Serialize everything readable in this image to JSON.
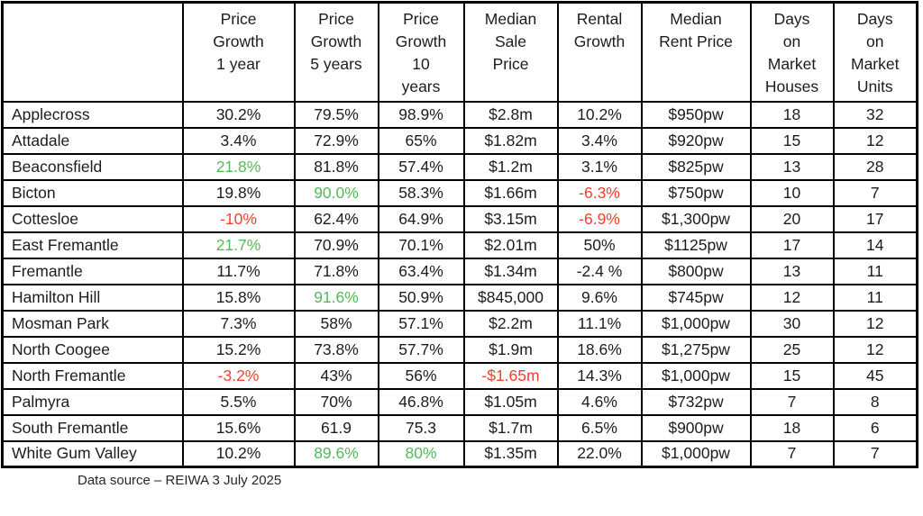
{
  "colors": {
    "text": "#1c1c1c",
    "positive": "#53b959",
    "negative": "#f4402d",
    "border": "#000000",
    "page_bg": "#ffffff"
  },
  "footer": {
    "source_note": "Data source – REIWA 3 July 2025"
  },
  "chart_data": {
    "type": "table",
    "title": "",
    "legend": "cell text colored green = highlighted positive growth, red = negative value",
    "columns": [
      {
        "label": "",
        "display": ""
      },
      {
        "label": "Price Growth 1 year",
        "display": "Price\nGrowth\n1 year"
      },
      {
        "label": "Price Growth 5 years",
        "display": "Price\nGrowth\n5 years"
      },
      {
        "label": "Price Growth 10 years",
        "display": "Price\nGrowth\n10\nyears"
      },
      {
        "label": "Median Sale Price",
        "display": "Median\nSale\nPrice"
      },
      {
        "label": "Rental Growth",
        "display": "Rental\nGrowth"
      },
      {
        "label": "Median Rent Price",
        "display": "Median\nRent Price"
      },
      {
        "label": "Days on Market Houses",
        "display": "Days\non\nMarket\nHouses"
      },
      {
        "label": "Days on Market Units",
        "display": "Days\non\nMarket\nUnits"
      }
    ],
    "rows": [
      {
        "suburb": "Applecross",
        "cells": [
          {
            "text": "30.2%",
            "color": null
          },
          {
            "text": "79.5%",
            "color": null
          },
          {
            "text": "98.9%",
            "color": null
          },
          {
            "text": "$2.8m",
            "color": null
          },
          {
            "text": "10.2%",
            "color": null
          },
          {
            "text": "$950pw",
            "color": null
          },
          {
            "text": "18",
            "color": null
          },
          {
            "text": "32",
            "color": null
          }
        ]
      },
      {
        "suburb": "Attadale",
        "cells": [
          {
            "text": "3.4%",
            "color": null
          },
          {
            "text": "72.9%",
            "color": null
          },
          {
            "text": "65%",
            "color": null
          },
          {
            "text": "$1.82m",
            "color": null
          },
          {
            "text": "3.4%",
            "color": null
          },
          {
            "text": "$920pw",
            "color": null
          },
          {
            "text": "15",
            "color": null
          },
          {
            "text": "12",
            "color": null
          }
        ]
      },
      {
        "suburb": "Beaconsfield",
        "cells": [
          {
            "text": "21.8%",
            "color": "green"
          },
          {
            "text": "81.8%",
            "color": null
          },
          {
            "text": "57.4%",
            "color": null
          },
          {
            "text": "$1.2m",
            "color": null
          },
          {
            "text": "3.1%",
            "color": null
          },
          {
            "text": "$825pw",
            "color": null
          },
          {
            "text": "13",
            "color": null
          },
          {
            "text": "28",
            "color": null
          }
        ]
      },
      {
        "suburb": "Bicton",
        "cells": [
          {
            "text": "19.8%",
            "color": null
          },
          {
            "text": "90.0%",
            "color": "green"
          },
          {
            "text": "58.3%",
            "color": null
          },
          {
            "text": "$1.66m",
            "color": null
          },
          {
            "text": "-6.3%",
            "color": "red"
          },
          {
            "text": "$750pw",
            "color": null
          },
          {
            "text": "10",
            "color": null
          },
          {
            "text": "7",
            "color": null
          }
        ]
      },
      {
        "suburb": "Cottesloe",
        "cells": [
          {
            "text": "-10%",
            "color": "red"
          },
          {
            "text": "62.4%",
            "color": null
          },
          {
            "text": "64.9%",
            "color": null
          },
          {
            "text": "$3.15m",
            "color": null
          },
          {
            "text": "-6.9%",
            "color": "red"
          },
          {
            "text": "$1,300pw",
            "color": null
          },
          {
            "text": "20",
            "color": null
          },
          {
            "text": "17",
            "color": null
          }
        ]
      },
      {
        "suburb": "East Fremantle",
        "cells": [
          {
            "text": "21.7%",
            "color": "green"
          },
          {
            "text": "70.9%",
            "color": null
          },
          {
            "text": "70.1%",
            "color": null
          },
          {
            "text": "$2.01m",
            "color": null
          },
          {
            "text": "50%",
            "color": null
          },
          {
            "text": "$1125pw",
            "color": null
          },
          {
            "text": "17",
            "color": null
          },
          {
            "text": "14",
            "color": null
          }
        ]
      },
      {
        "suburb": "Fremantle",
        "cells": [
          {
            "text": "11.7%",
            "color": null
          },
          {
            "text": "71.8%",
            "color": null
          },
          {
            "text": "63.4%",
            "color": null
          },
          {
            "text": "$1.34m",
            "color": null
          },
          {
            "text": "-2.4 %",
            "color": null
          },
          {
            "text": "$800pw",
            "color": null
          },
          {
            "text": "13",
            "color": null
          },
          {
            "text": "11",
            "color": null
          }
        ]
      },
      {
        "suburb": "Hamilton Hill",
        "cells": [
          {
            "text": "15.8%",
            "color": null
          },
          {
            "text": "91.6%",
            "color": "green"
          },
          {
            "text": "50.9%",
            "color": null
          },
          {
            "text": "$845,000",
            "color": null
          },
          {
            "text": "9.6%",
            "color": null
          },
          {
            "text": "$745pw",
            "color": null
          },
          {
            "text": "12",
            "color": null
          },
          {
            "text": "11",
            "color": null
          }
        ]
      },
      {
        "suburb": "Mosman Park",
        "cells": [
          {
            "text": "7.3%",
            "color": null
          },
          {
            "text": "58%",
            "color": null
          },
          {
            "text": "57.1%",
            "color": null
          },
          {
            "text": "$2.2m",
            "color": null
          },
          {
            "text": "11.1%",
            "color": null
          },
          {
            "text": "$1,000pw",
            "color": null
          },
          {
            "text": "30",
            "color": null
          },
          {
            "text": "12",
            "color": null
          }
        ]
      },
      {
        "suburb": "North Coogee",
        "cells": [
          {
            "text": "15.2%",
            "color": null
          },
          {
            "text": "73.8%",
            "color": null
          },
          {
            "text": "57.7%",
            "color": null
          },
          {
            "text": "$1.9m",
            "color": null
          },
          {
            "text": "18.6%",
            "color": null
          },
          {
            "text": "$1,275pw",
            "color": null
          },
          {
            "text": "25",
            "color": null
          },
          {
            "text": "12",
            "color": null
          }
        ]
      },
      {
        "suburb": "North Fremantle",
        "cells": [
          {
            "text": "-3.2%",
            "color": "red"
          },
          {
            "text": "43%",
            "color": null
          },
          {
            "text": "56%",
            "color": null
          },
          {
            "text": "-$1.65m",
            "color": "red"
          },
          {
            "text": "14.3%",
            "color": null
          },
          {
            "text": "$1,000pw",
            "color": null
          },
          {
            "text": "15",
            "color": null
          },
          {
            "text": "45",
            "color": null
          }
        ]
      },
      {
        "suburb": "Palmyra",
        "cells": [
          {
            "text": "5.5%",
            "color": null
          },
          {
            "text": "70%",
            "color": null
          },
          {
            "text": "46.8%",
            "color": null
          },
          {
            "text": "$1.05m",
            "color": null
          },
          {
            "text": "4.6%",
            "color": null
          },
          {
            "text": "$732pw",
            "color": null
          },
          {
            "text": "7",
            "color": null
          },
          {
            "text": "8",
            "color": null
          }
        ]
      },
      {
        "suburb": "South Fremantle",
        "cells": [
          {
            "text": "15.6%",
            "color": null
          },
          {
            "text": "61.9",
            "color": null
          },
          {
            "text": "75.3",
            "color": null
          },
          {
            "text": "$1.7m",
            "color": null
          },
          {
            "text": "6.5%",
            "color": null
          },
          {
            "text": "$900pw",
            "color": null
          },
          {
            "text": "18",
            "color": null
          },
          {
            "text": "6",
            "color": null
          }
        ]
      },
      {
        "suburb": "White Gum Valley",
        "cells": [
          {
            "text": "10.2%",
            "color": null
          },
          {
            "text": "89.6%",
            "color": "green"
          },
          {
            "text": "80%",
            "color": "green"
          },
          {
            "text": "$1.35m",
            "color": null
          },
          {
            "text": "22.0%",
            "color": null
          },
          {
            "text": "$1,000pw",
            "color": null
          },
          {
            "text": "7",
            "color": null
          },
          {
            "text": "7",
            "color": null
          }
        ]
      }
    ]
  }
}
